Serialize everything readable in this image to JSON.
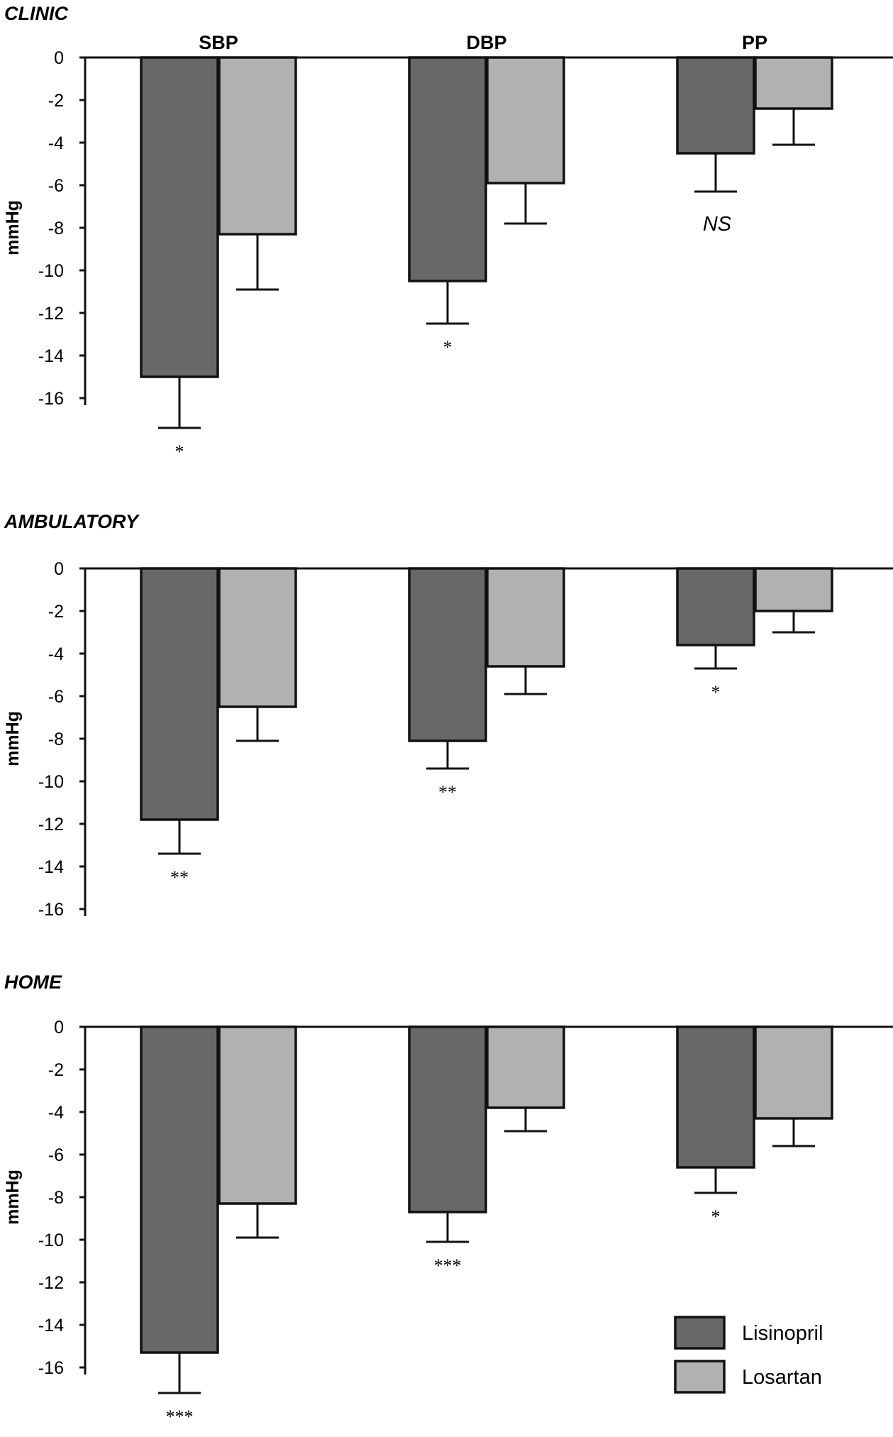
{
  "colors": {
    "lisinopril": "#686868",
    "losartan": "#b1b1b1",
    "stroke": "#111111"
  },
  "chart_data": [
    {
      "type": "bar",
      "title": "CLINIC",
      "categories": [
        "SBP",
        "DBP",
        "PP"
      ],
      "ylabel": "mmHg",
      "ylim": [
        -16,
        0
      ],
      "yticks": [
        "0",
        "-2",
        "-4",
        "-6",
        "-8",
        "-10",
        "-12",
        "-14",
        "-16"
      ],
      "series": [
        {
          "name": "Lisinopril",
          "values": [
            -15.0,
            -10.5,
            -4.5
          ],
          "errors": [
            2.4,
            2.0,
            1.8
          ]
        },
        {
          "name": "Losartan",
          "values": [
            -8.3,
            -5.9,
            -2.4
          ],
          "errors": [
            2.6,
            1.9,
            1.7
          ]
        }
      ],
      "significance": [
        "*",
        "*",
        "NS"
      ]
    },
    {
      "type": "bar",
      "title": "AMBULATORY",
      "categories": [
        "SBP",
        "DBP",
        "PP"
      ],
      "ylabel": "mmHg",
      "ylim": [
        -16,
        0
      ],
      "yticks": [
        "0",
        "-2",
        "-4",
        "-6",
        "-8",
        "-10",
        "-12",
        "-14",
        "-16"
      ],
      "series": [
        {
          "name": "Lisinopril",
          "values": [
            -11.8,
            -8.1,
            -3.6
          ],
          "errors": [
            1.6,
            1.3,
            1.1
          ]
        },
        {
          "name": "Losartan",
          "values": [
            -6.5,
            -4.6,
            -2.0
          ],
          "errors": [
            1.6,
            1.3,
            1.0
          ]
        }
      ],
      "significance": [
        "**",
        "**",
        "*"
      ]
    },
    {
      "type": "bar",
      "title": "HOME",
      "categories": [
        "SBP",
        "DBP",
        "PP"
      ],
      "ylabel": "mmHg",
      "ylim": [
        -16,
        0
      ],
      "yticks": [
        "0",
        "-2",
        "-4",
        "-6",
        "-8",
        "-10",
        "-12",
        "-14",
        "-16"
      ],
      "series": [
        {
          "name": "Lisinopril",
          "values": [
            -15.3,
            -8.7,
            -6.6
          ],
          "errors": [
            1.9,
            1.4,
            1.2
          ]
        },
        {
          "name": "Losartan",
          "values": [
            -8.3,
            -3.8,
            -4.3
          ],
          "errors": [
            1.6,
            1.1,
            1.3
          ]
        }
      ],
      "significance": [
        "***",
        "***",
        "*"
      ]
    }
  ],
  "legend": [
    {
      "label": "Lisinopril"
    },
    {
      "label": "Losartan"
    }
  ]
}
